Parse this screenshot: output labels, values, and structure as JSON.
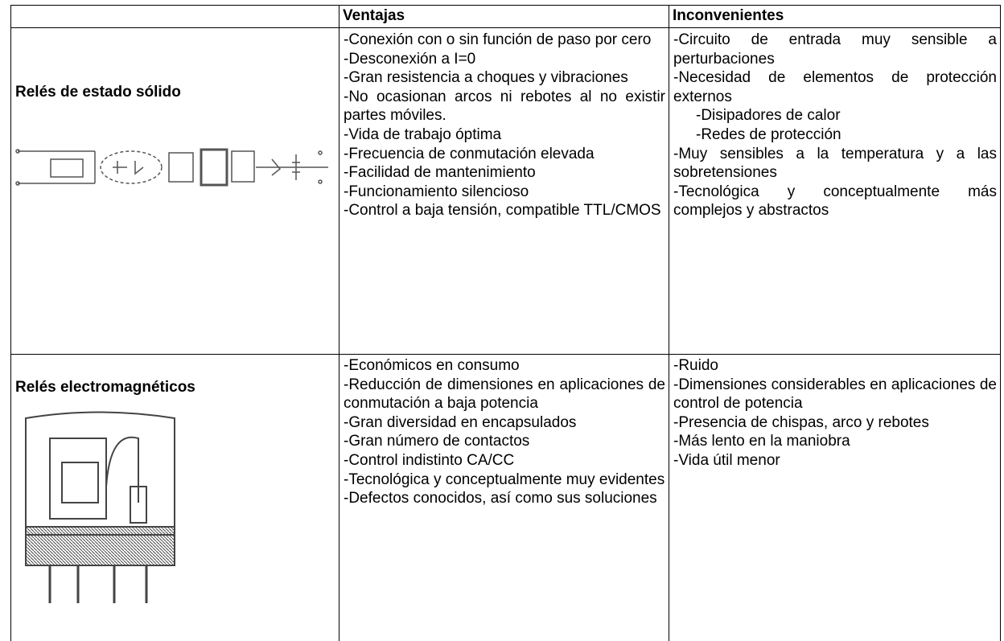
{
  "table": {
    "header": [
      "Ventajas",
      "Inconvenientes"
    ],
    "rows": [
      {
        "label": "Relés de estado sólido",
        "ventajas": [
          "-Conexión con o sin función de paso por cero",
          "-Desconexión a I=0",
          "-Gran resistencia a choques y vibraciones",
          "-No ocasionan arcos ni rebotes al no existir partes móviles.",
          "-Vida de trabajo óptima",
          "-Frecuencia de conmutación elevada",
          "-Facilidad de mantenimiento",
          "-Funcionamiento silencioso",
          "-Control a baja tensión, compatible TTL/CMOS"
        ],
        "inconvenientes": [
          "-Circuito de entrada muy sensible a perturbaciones",
          "-Necesidad de elementos de protección externos",
          [
            "-Disipadores de calor",
            "-Redes de protección"
          ],
          "-Muy sensibles a la temperatura y a las sobretensiones",
          "-Tecnológica y conceptualmente más complejos y abstractos"
        ]
      },
      {
        "label": "Relés electromagnéticos",
        "ventajas": [
          "-Económicos en consumo",
          "-Reducción de dimensiones en aplicaciones de conmutación a baja potencia",
          "-Gran diversidad en encapsulados",
          "-Gran número de contactos",
          "-Control indistinto CA/CC",
          "-Tecnológica y conceptualmente muy evidentes",
          "-Defectos conocidos, así como sus soluciones"
        ],
        "inconvenientes": [
          "-Ruido",
          "-Dimensiones considerables en aplicaciones de  control de potencia",
          "-Presencia de chispas, arco y rebotes",
          "-Más lento en la maniobra",
          "-Vida útil menor"
        ]
      }
    ]
  }
}
